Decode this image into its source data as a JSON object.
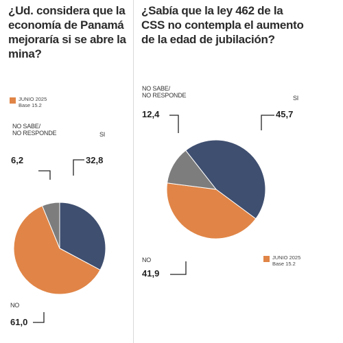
{
  "chart_data": [
    {
      "type": "pie",
      "title": "¿Ud. considera que la economía de Panamá mejoraría si se abre la mina?",
      "legend": {
        "label": "JUNIO 2025",
        "base": "Base 15.2"
      },
      "slices": [
        {
          "label": "SI",
          "value": 32.8,
          "value_text": "32,8",
          "color": "#3f4f70"
        },
        {
          "label": "NO",
          "value": 61.0,
          "value_text": "61,0",
          "color": "#e08547"
        },
        {
          "label": "NO SABE/\nNO RESPONDE",
          "value": 6.2,
          "value_text": "6,2",
          "color": "#7d7d7d"
        }
      ]
    },
    {
      "type": "pie",
      "title": "¿Sabía que la ley 462 de la CSS no contempla el aumento de la edad de jubilación?",
      "legend": {
        "label": "JUNIO 2025",
        "base": "Base 15.2"
      },
      "slices": [
        {
          "label": "SI",
          "value": 45.7,
          "value_text": "45,7",
          "color": "#3f4f70"
        },
        {
          "label": "NO",
          "value": 41.9,
          "value_text": "41,9",
          "color": "#e08547"
        },
        {
          "label": "NO SABE/\nNO RESPONDE",
          "value": 12.4,
          "value_text": "12,4",
          "color": "#7d7d7d"
        }
      ]
    }
  ]
}
